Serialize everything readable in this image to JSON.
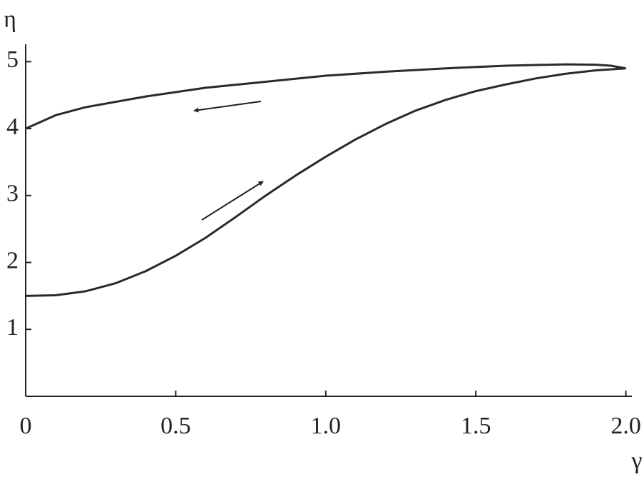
{
  "chart_data": {
    "type": "line",
    "x_label": "γ",
    "y_label": "η",
    "series": [
      {
        "color": "#2a2a2a",
        "x": [
          0,
          0.1,
          0.2,
          0.3,
          0.4,
          0.5,
          0.6,
          0.7,
          0.8,
          0.9,
          1.0,
          1.1,
          1.2,
          1.3,
          1.4,
          1.5,
          1.6,
          1.7,
          1.8,
          1.9,
          2.0
        ],
        "values": [
          1.5,
          1.51,
          1.57,
          1.69,
          1.87,
          2.1,
          2.37,
          2.68,
          3.0,
          3.3,
          3.58,
          3.84,
          4.07,
          4.27,
          4.43,
          4.56,
          4.66,
          4.75,
          4.82,
          4.87,
          4.9
        ]
      },
      {
        "color": "#2a2a2a",
        "x": [
          2.0,
          1.95,
          1.9,
          1.8,
          1.6,
          1.4,
          1.2,
          1.0,
          0.8,
          0.6,
          0.4,
          0.2,
          0.1,
          0
        ],
        "values": [
          4.9,
          4.94,
          4.955,
          4.96,
          4.94,
          4.9,
          4.85,
          4.79,
          4.7,
          4.61,
          4.48,
          4.32,
          4.2,
          4.0
        ]
      }
    ],
    "xlim": [
      0,
      2.02
    ],
    "ylim": [
      0,
      5.26
    ],
    "xticks": [
      0,
      0.5,
      {
        "value": 1,
        "label": "1.0"
      },
      1.5,
      {
        "value": 2,
        "label": "2.0"
      }
    ],
    "yticks": [
      1,
      2,
      3,
      4,
      5
    ]
  }
}
